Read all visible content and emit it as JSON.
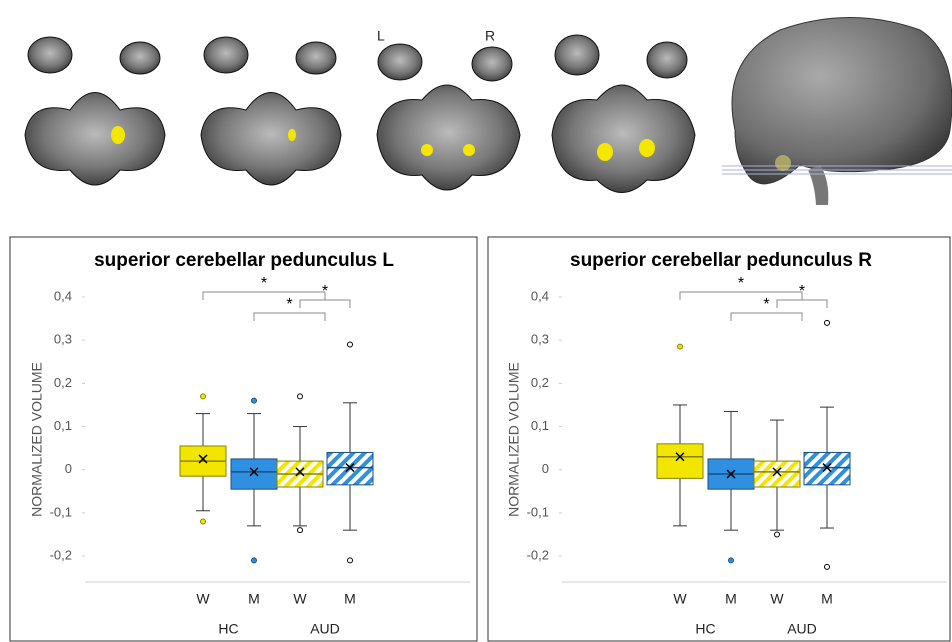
{
  "chart_data": [
    {
      "type": "box",
      "title": "superior cerebellar pedunculus L",
      "y_label": "NORMALIZED VOLUME",
      "categories": [
        "W",
        "M",
        "W",
        "M"
      ],
      "groups": [
        "HC",
        "AUD"
      ],
      "ylim": [
        -0.26,
        0.4
      ],
      "yticks": [
        {
          "value": -0.2,
          "label": "-0,2"
        },
        {
          "value": -0.1,
          "label": "-0,1"
        },
        0,
        {
          "value": 0.1,
          "label": "0,1"
        },
        {
          "value": 0.2,
          "label": "0,2"
        },
        {
          "value": 0.3,
          "label": "0,3"
        },
        {
          "value": 0.4,
          "label": "0,4"
        }
      ],
      "significance": [
        "*",
        "*",
        "*"
      ],
      "boxes": [
        {
          "color": "#f2e600",
          "hatched": false,
          "whisker_low": -0.095,
          "q1": -0.015,
          "median": 0.02,
          "q3": 0.055,
          "whisker_high": 0.13,
          "mean": 0.025,
          "outliers": [
            0.17,
            -0.12
          ]
        },
        {
          "color": "#2f8fe0",
          "hatched": false,
          "whisker_low": -0.13,
          "q1": -0.045,
          "median": -0.005,
          "q3": 0.025,
          "whisker_high": 0.13,
          "mean": -0.005,
          "outliers": [
            0.16,
            -0.21
          ]
        },
        {
          "color": "#f2e600",
          "hatched": true,
          "whisker_low": -0.13,
          "q1": -0.04,
          "median": -0.01,
          "q3": 0.02,
          "whisker_high": 0.1,
          "mean": -0.005,
          "outliers": [
            0.17,
            -0.14
          ]
        },
        {
          "color": "#2f8fe0",
          "hatched": true,
          "whisker_low": -0.14,
          "q1": -0.035,
          "median": 0.005,
          "q3": 0.04,
          "whisker_high": 0.155,
          "mean": 0.005,
          "outliers": [
            0.29,
            -0.21
          ]
        }
      ]
    },
    {
      "type": "box",
      "title": "superior cerebellar pedunculus R",
      "y_label": "NORMALIZED VOLUME",
      "categories": [
        "W",
        "M",
        "W",
        "M"
      ],
      "groups": [
        "HC",
        "AUD"
      ],
      "ylim": [
        -0.26,
        0.4
      ],
      "yticks": [
        {
          "value": -0.2,
          "label": "-0,2"
        },
        {
          "value": -0.1,
          "label": "-0,1"
        },
        0,
        {
          "value": 0.1,
          "label": "0,1"
        },
        {
          "value": 0.2,
          "label": "0,2"
        },
        {
          "value": 0.3,
          "label": "0,3"
        },
        {
          "value": 0.4,
          "label": "0,4"
        }
      ],
      "significance": [
        "*",
        "*",
        "*"
      ],
      "boxes": [
        {
          "color": "#f2e600",
          "hatched": false,
          "whisker_low": -0.13,
          "q1": -0.02,
          "median": 0.03,
          "q3": 0.06,
          "whisker_high": 0.15,
          "mean": 0.03,
          "outliers": [
            0.285
          ]
        },
        {
          "color": "#2f8fe0",
          "hatched": false,
          "whisker_low": -0.14,
          "q1": -0.045,
          "median": -0.01,
          "q3": 0.025,
          "whisker_high": 0.135,
          "mean": -0.01,
          "outliers": [
            -0.21
          ]
        },
        {
          "color": "#f2e600",
          "hatched": true,
          "whisker_low": -0.14,
          "q1": -0.04,
          "median": -0.005,
          "q3": 0.02,
          "whisker_high": 0.115,
          "mean": -0.005,
          "outliers": [
            -0.15
          ]
        },
        {
          "color": "#2f8fe0",
          "hatched": true,
          "whisker_low": -0.135,
          "q1": -0.035,
          "median": 0.005,
          "q3": 0.04,
          "whisker_high": 0.145,
          "mean": 0.005,
          "outliers": [
            0.34,
            -0.225
          ]
        }
      ]
    }
  ],
  "image_labels": [
    "L",
    "R"
  ]
}
